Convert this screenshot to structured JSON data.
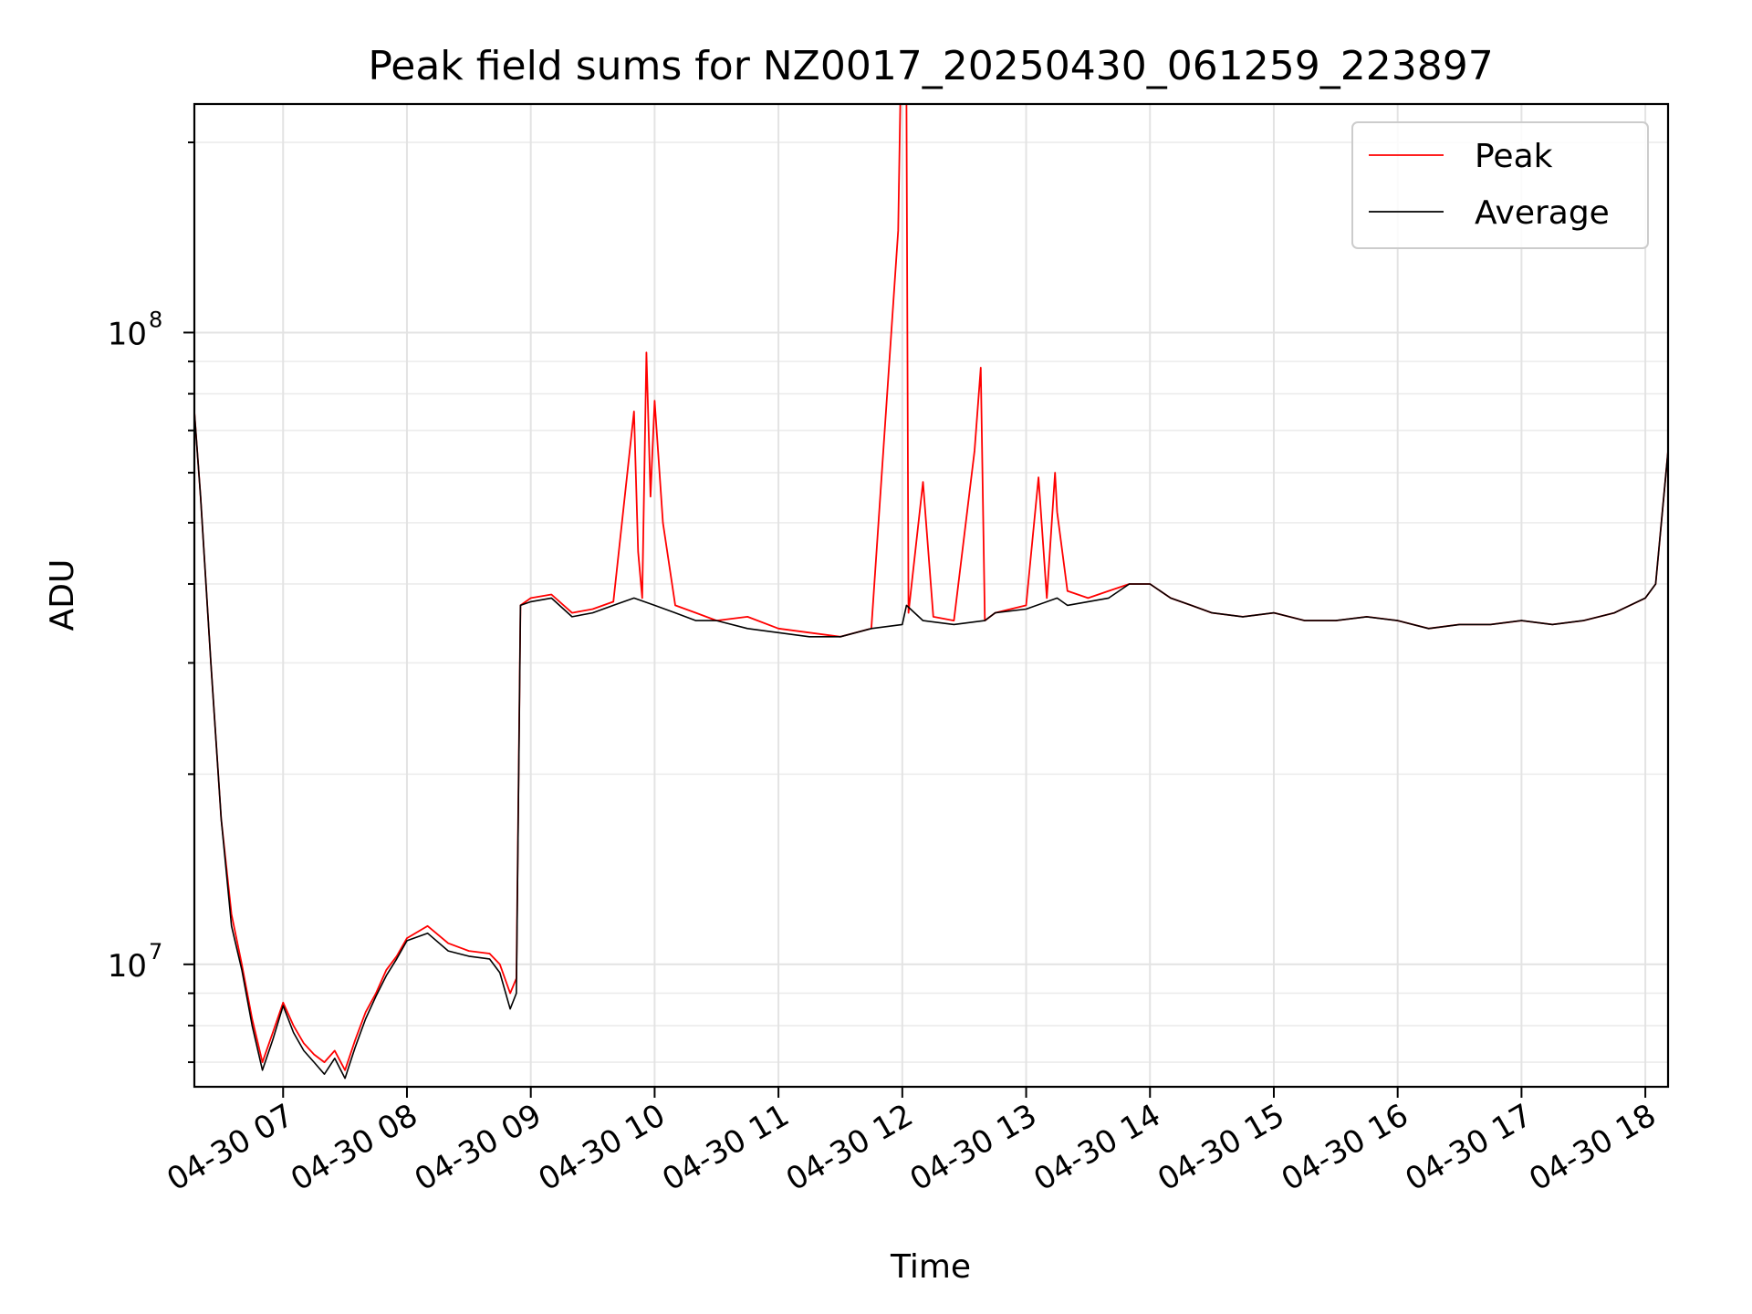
{
  "chart_data": {
    "type": "line",
    "title": "Peak field sums for NZ0017_20250430_061259_223897",
    "xlabel": "Time",
    "ylabel": "ADU",
    "y_scale": "log",
    "xlim": [
      "2025-04-30 06:17",
      "2025-04-30 18:11"
    ],
    "ylim": [
      6400000,
      230000000
    ],
    "grid": true,
    "legend_placement": "top-right",
    "x_ticks": [
      {
        "value": "2025-04-30 07:00",
        "label": "04-30 07"
      },
      {
        "value": "2025-04-30 08:00",
        "label": "04-30 08"
      },
      {
        "value": "2025-04-30 09:00",
        "label": "04-30 09"
      },
      {
        "value": "2025-04-30 10:00",
        "label": "04-30 10"
      },
      {
        "value": "2025-04-30 11:00",
        "label": "04-30 11"
      },
      {
        "value": "2025-04-30 12:00",
        "label": "04-30 12"
      },
      {
        "value": "2025-04-30 13:00",
        "label": "04-30 13"
      },
      {
        "value": "2025-04-30 14:00",
        "label": "04-30 14"
      },
      {
        "value": "2025-04-30 15:00",
        "label": "04-30 15"
      },
      {
        "value": "2025-04-30 16:00",
        "label": "04-30 16"
      },
      {
        "value": "2025-04-30 17:00",
        "label": "04-30 17"
      },
      {
        "value": "2025-04-30 18:00",
        "label": "04-30 18"
      }
    ],
    "y_ticks": [
      {
        "value": 10000000,
        "base": "10",
        "exp": "7"
      },
      {
        "value": 100000000,
        "base": "10",
        "exp": "8"
      }
    ],
    "series": [
      {
        "name": "Peak",
        "color": "#ff0000",
        "x": [
          "2025-04-30 06:17",
          "2025-04-30 06:20",
          "2025-04-30 06:25",
          "2025-04-30 06:30",
          "2025-04-30 06:35",
          "2025-04-30 06:40",
          "2025-04-30 06:45",
          "2025-04-30 06:50",
          "2025-04-30 06:55",
          "2025-04-30 07:00",
          "2025-04-30 07:05",
          "2025-04-30 07:10",
          "2025-04-30 07:15",
          "2025-04-30 07:20",
          "2025-04-30 07:25",
          "2025-04-30 07:30",
          "2025-04-30 07:35",
          "2025-04-30 07:40",
          "2025-04-30 07:45",
          "2025-04-30 07:50",
          "2025-04-30 07:55",
          "2025-04-30 08:00",
          "2025-04-30 08:10",
          "2025-04-30 08:20",
          "2025-04-30 08:30",
          "2025-04-30 08:40",
          "2025-04-30 08:45",
          "2025-04-30 08:50",
          "2025-04-30 08:53",
          "2025-04-30 08:55",
          "2025-04-30 09:00",
          "2025-04-30 09:10",
          "2025-04-30 09:20",
          "2025-04-30 09:30",
          "2025-04-30 09:40",
          "2025-04-30 09:50",
          "2025-04-30 09:52",
          "2025-04-30 09:54",
          "2025-04-30 09:56",
          "2025-04-30 09:58",
          "2025-04-30 10:00",
          "2025-04-30 10:04",
          "2025-04-30 10:10",
          "2025-04-30 10:20",
          "2025-04-30 10:30",
          "2025-04-30 10:45",
          "2025-04-30 11:00",
          "2025-04-30 11:15",
          "2025-04-30 11:30",
          "2025-04-30 11:45",
          "2025-04-30 11:58",
          "2025-04-30 11:59",
          "2025-04-30 12:02",
          "2025-04-30 12:03",
          "2025-04-30 12:10",
          "2025-04-30 12:15",
          "2025-04-30 12:25",
          "2025-04-30 12:35",
          "2025-04-30 12:38",
          "2025-04-30 12:40",
          "2025-04-30 12:45",
          "2025-04-30 13:00",
          "2025-04-30 13:06",
          "2025-04-30 13:10",
          "2025-04-30 13:14",
          "2025-04-30 13:15",
          "2025-04-30 13:20",
          "2025-04-30 13:30",
          "2025-04-30 13:40",
          "2025-04-30 13:50",
          "2025-04-30 14:00",
          "2025-04-30 14:10",
          "2025-04-30 14:20",
          "2025-04-30 14:30",
          "2025-04-30 14:45",
          "2025-04-30 15:00",
          "2025-04-30 15:15",
          "2025-04-30 15:30",
          "2025-04-30 15:45",
          "2025-04-30 16:00",
          "2025-04-30 16:15",
          "2025-04-30 16:30",
          "2025-04-30 16:45",
          "2025-04-30 17:00",
          "2025-04-30 17:15",
          "2025-04-30 17:30",
          "2025-04-30 17:45",
          "2025-04-30 18:00",
          "2025-04-30 18:05",
          "2025-04-30 18:11"
        ],
        "values": [
          75000000,
          55000000,
          30000000,
          17000000,
          12000000,
          10000000,
          8200000,
          7000000,
          7800000,
          8700000,
          8000000,
          7500000,
          7200000,
          7000000,
          7300000,
          6800000,
          7600000,
          8400000,
          9000000,
          9800000,
          10300000,
          11000000,
          11500000,
          10800000,
          10500000,
          10400000,
          10000000,
          9000000,
          9500000,
          37000000,
          38000000,
          38500000,
          36000000,
          36500000,
          37500000,
          75000000,
          45000000,
          38000000,
          93000000,
          55000000,
          78000000,
          50000000,
          37000000,
          36000000,
          35000000,
          35500000,
          34000000,
          33500000,
          33000000,
          34000000,
          145000000,
          230000000,
          230000000,
          36000000,
          58000000,
          35500000,
          35000000,
          65000000,
          88000000,
          35000000,
          36000000,
          37000000,
          59000000,
          38000000,
          60000000,
          52000000,
          39000000,
          38000000,
          39000000,
          40000000,
          40000000,
          38000000,
          37000000,
          36000000,
          35500000,
          36000000,
          35000000,
          35000000,
          35500000,
          35000000,
          34000000,
          34500000,
          34500000,
          35000000,
          34500000,
          35000000,
          36000000,
          38000000,
          40000000,
          65000000
        ]
      },
      {
        "name": "Average",
        "color": "#000000",
        "x": [
          "2025-04-30 06:17",
          "2025-04-30 06:20",
          "2025-04-30 06:25",
          "2025-04-30 06:30",
          "2025-04-30 06:35",
          "2025-04-30 06:40",
          "2025-04-30 06:45",
          "2025-04-30 06:50",
          "2025-04-30 06:55",
          "2025-04-30 07:00",
          "2025-04-30 07:05",
          "2025-04-30 07:10",
          "2025-04-30 07:15",
          "2025-04-30 07:20",
          "2025-04-30 07:25",
          "2025-04-30 07:30",
          "2025-04-30 07:35",
          "2025-04-30 07:40",
          "2025-04-30 07:45",
          "2025-04-30 07:50",
          "2025-04-30 07:55",
          "2025-04-30 08:00",
          "2025-04-30 08:10",
          "2025-04-30 08:20",
          "2025-04-30 08:30",
          "2025-04-30 08:40",
          "2025-04-30 08:45",
          "2025-04-30 08:50",
          "2025-04-30 08:53",
          "2025-04-30 08:55",
          "2025-04-30 09:00",
          "2025-04-30 09:10",
          "2025-04-30 09:20",
          "2025-04-30 09:30",
          "2025-04-30 09:40",
          "2025-04-30 09:50",
          "2025-04-30 10:00",
          "2025-04-30 10:10",
          "2025-04-30 10:20",
          "2025-04-30 10:30",
          "2025-04-30 10:45",
          "2025-04-30 11:00",
          "2025-04-30 11:15",
          "2025-04-30 11:30",
          "2025-04-30 11:45",
          "2025-04-30 12:00",
          "2025-04-30 12:02",
          "2025-04-30 12:10",
          "2025-04-30 12:25",
          "2025-04-30 12:40",
          "2025-04-30 12:45",
          "2025-04-30 13:00",
          "2025-04-30 13:15",
          "2025-04-30 13:20",
          "2025-04-30 13:30",
          "2025-04-30 13:40",
          "2025-04-30 13:50",
          "2025-04-30 14:00",
          "2025-04-30 14:10",
          "2025-04-30 14:20",
          "2025-04-30 14:30",
          "2025-04-30 14:45",
          "2025-04-30 15:00",
          "2025-04-30 15:15",
          "2025-04-30 15:30",
          "2025-04-30 15:45",
          "2025-04-30 16:00",
          "2025-04-30 16:15",
          "2025-04-30 16:30",
          "2025-04-30 16:45",
          "2025-04-30 17:00",
          "2025-04-30 17:15",
          "2025-04-30 17:30",
          "2025-04-30 17:45",
          "2025-04-30 18:00",
          "2025-04-30 18:05",
          "2025-04-30 18:11"
        ],
        "values": [
          75000000,
          55000000,
          30000000,
          17000000,
          11500000,
          9800000,
          8000000,
          6800000,
          7600000,
          8600000,
          7800000,
          7300000,
          7000000,
          6700000,
          7100000,
          6600000,
          7400000,
          8200000,
          8900000,
          9600000,
          10200000,
          10900000,
          11200000,
          10500000,
          10300000,
          10200000,
          9700000,
          8500000,
          9000000,
          37000000,
          37500000,
          38000000,
          35500000,
          36000000,
          37000000,
          38000000,
          37000000,
          36000000,
          35000000,
          35000000,
          34000000,
          33500000,
          33000000,
          33000000,
          34000000,
          34500000,
          37000000,
          35000000,
          34500000,
          35000000,
          36000000,
          36500000,
          38000000,
          37000000,
          37500000,
          38000000,
          40000000,
          40000000,
          38000000,
          37000000,
          36000000,
          35500000,
          36000000,
          35000000,
          35000000,
          35500000,
          35000000,
          34000000,
          34500000,
          34500000,
          35000000,
          34500000,
          35000000,
          36000000,
          38000000,
          40000000,
          65000000
        ]
      }
    ]
  }
}
